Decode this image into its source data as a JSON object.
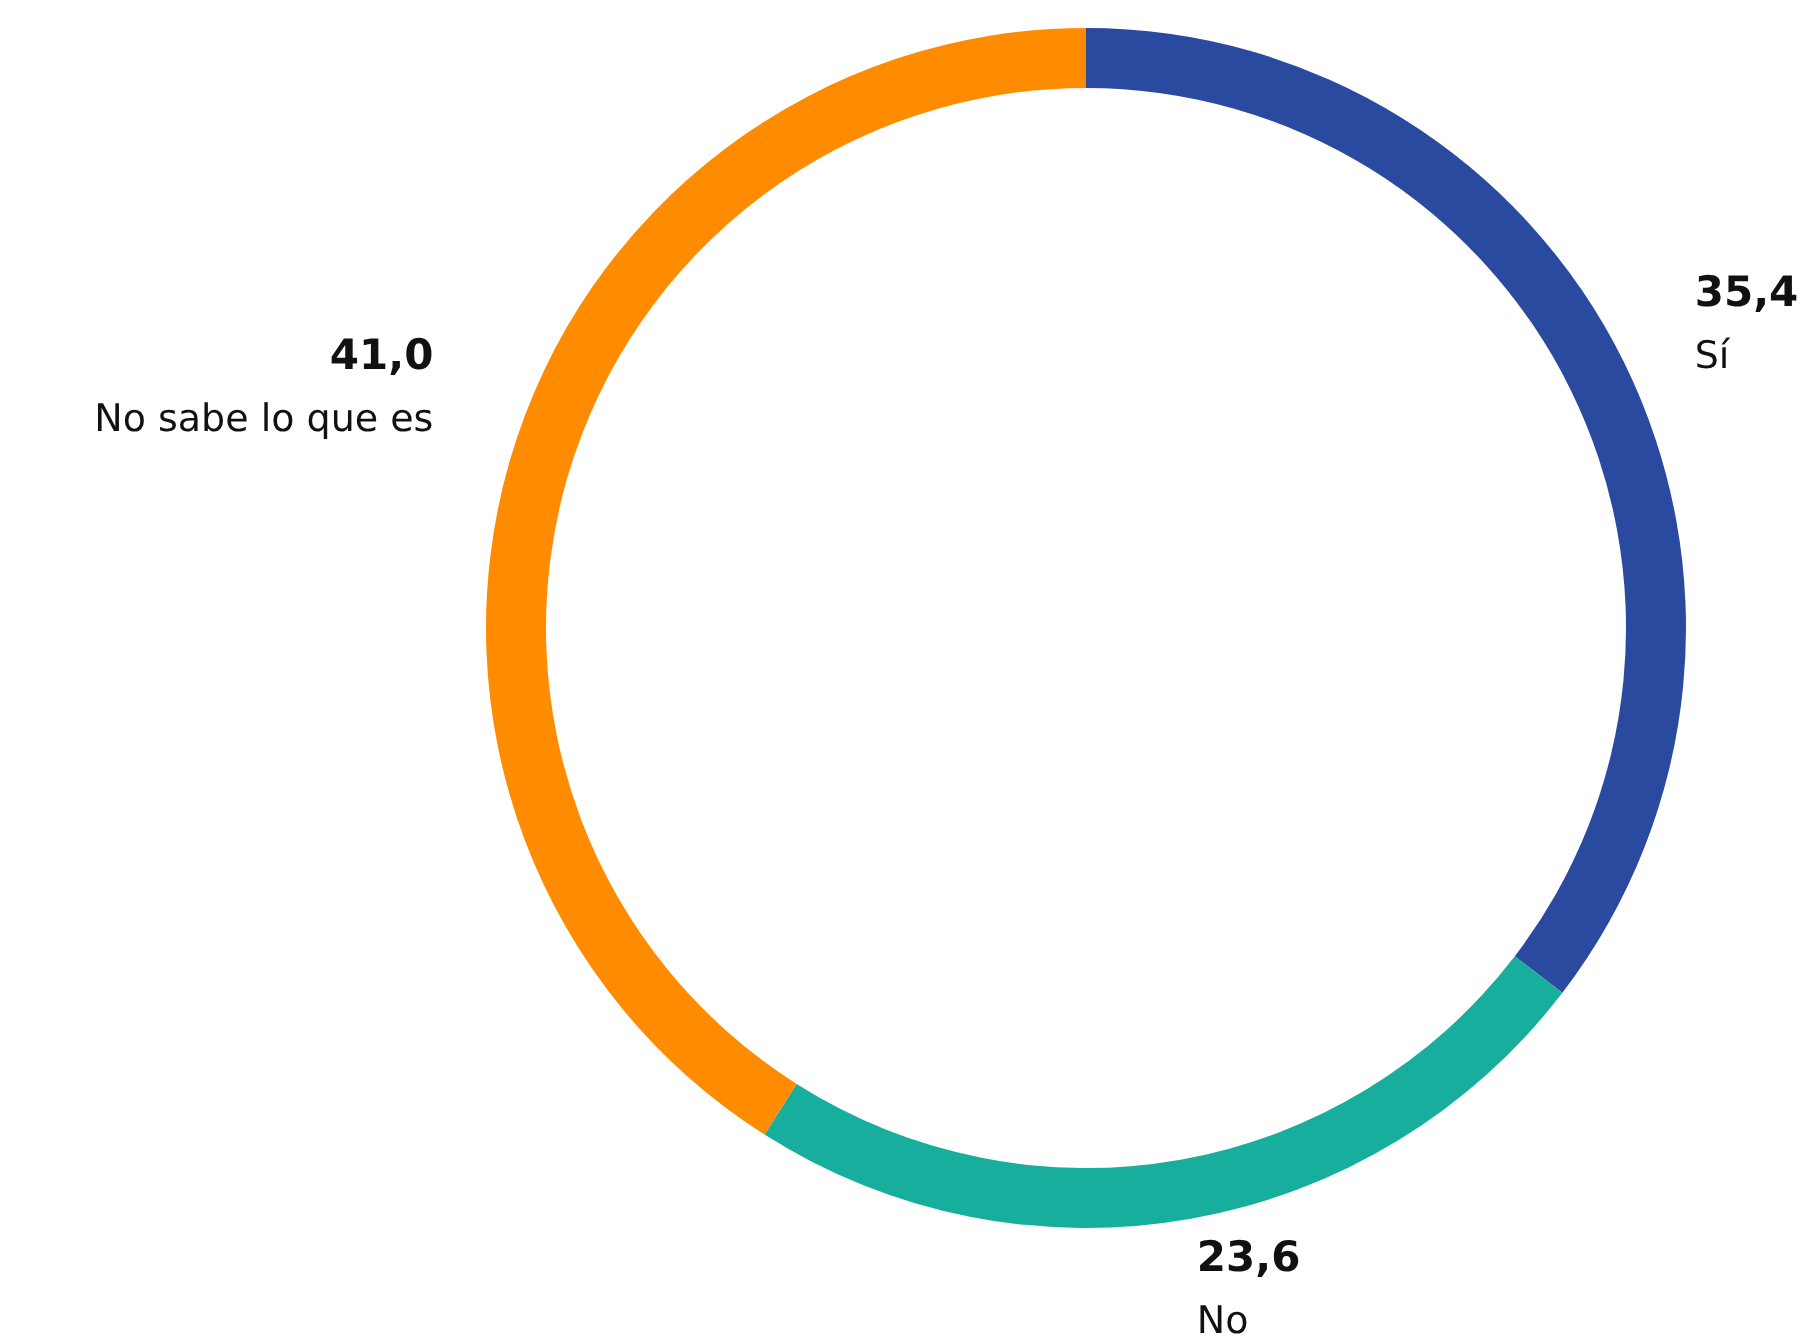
{
  "chart_data": {
    "type": "donut",
    "categories": [
      "Sí",
      "No",
      "No sabe lo que es"
    ],
    "values": [
      35.4,
      23.6,
      41.0
    ],
    "colors": [
      "#2a4aa0",
      "#17ae9e",
      "#ff8c00"
    ],
    "value_labels": [
      "35,4",
      "23,6",
      "41,0"
    ]
  }
}
